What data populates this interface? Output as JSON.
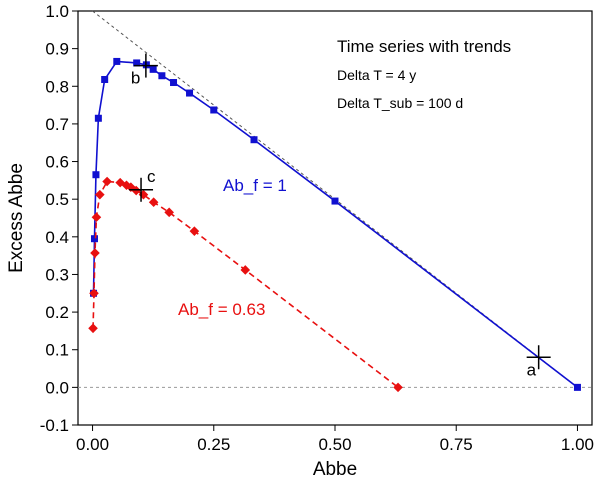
{
  "chart_data": {
    "type": "scatter",
    "xlabel": "Abbe",
    "ylabel": "Excess Abbe",
    "xlim": [
      -0.03,
      1.03
    ],
    "ylim": [
      -0.1,
      1.0
    ],
    "xticks": [
      "0.00",
      "0.25",
      "0.50",
      "0.75",
      "1.00"
    ],
    "xtick_values": [
      0,
      0.25,
      0.5,
      0.75,
      1.0
    ],
    "yticks": [
      "-0.1",
      "0.0",
      "0.1",
      "0.2",
      "0.3",
      "0.4",
      "0.5",
      "0.6",
      "0.7",
      "0.8",
      "0.9",
      "1.0"
    ],
    "ytick_values": [
      -0.1,
      0.0,
      0.1,
      0.2,
      0.3,
      0.4,
      0.5,
      0.6,
      0.7,
      0.8,
      0.9,
      1.0
    ],
    "reference_lines": [
      {
        "name": "diagonal",
        "x": [
          0,
          1
        ],
        "y": [
          1,
          0
        ],
        "color": "#555555",
        "style": "dashed"
      },
      {
        "name": "zero-line",
        "x": [
          -0.03,
          1.03
        ],
        "y": [
          0,
          0
        ],
        "color": "#999999",
        "style": "dashed"
      }
    ],
    "series": [
      {
        "name": "Ab_f = 1",
        "color": "#1010d0",
        "marker": "square",
        "line_style": "solid",
        "x": [
          0.002,
          0.004,
          0.007,
          0.012,
          0.025,
          0.05,
          0.091,
          0.111,
          0.125,
          0.143,
          0.167,
          0.2,
          0.25,
          0.333,
          0.5,
          1.0
        ],
        "y": [
          0.25,
          0.395,
          0.565,
          0.715,
          0.818,
          0.866,
          0.862,
          0.857,
          0.845,
          0.828,
          0.81,
          0.782,
          0.737,
          0.658,
          0.495,
          0.0
        ]
      },
      {
        "name": "Ab_f = 0.63",
        "color": "#e81010",
        "marker": "diamond",
        "line_style": "dashed",
        "x": [
          0.001,
          0.003,
          0.005,
          0.008,
          0.015,
          0.03,
          0.057,
          0.07,
          0.079,
          0.09,
          0.105,
          0.126,
          0.158,
          0.21,
          0.315,
          0.63
        ],
        "y": [
          0.157,
          0.25,
          0.357,
          0.452,
          0.512,
          0.547,
          0.544,
          0.537,
          0.532,
          0.523,
          0.512,
          0.492,
          0.465,
          0.415,
          0.312,
          0.0
        ]
      }
    ],
    "marked_points": [
      {
        "label": "a",
        "x": 0.92,
        "y": 0.08
      },
      {
        "label": "b",
        "x": 0.11,
        "y": 0.855
      },
      {
        "label": "c",
        "x": 0.1,
        "y": 0.525
      }
    ],
    "annotations": {
      "title": "Time series with trends",
      "line1": "Delta T = 4 y",
      "line2": "Delta T_sub = 100 d",
      "series1_label": "Ab_f = 1",
      "series2_label": "Ab_f = 0.63"
    }
  }
}
